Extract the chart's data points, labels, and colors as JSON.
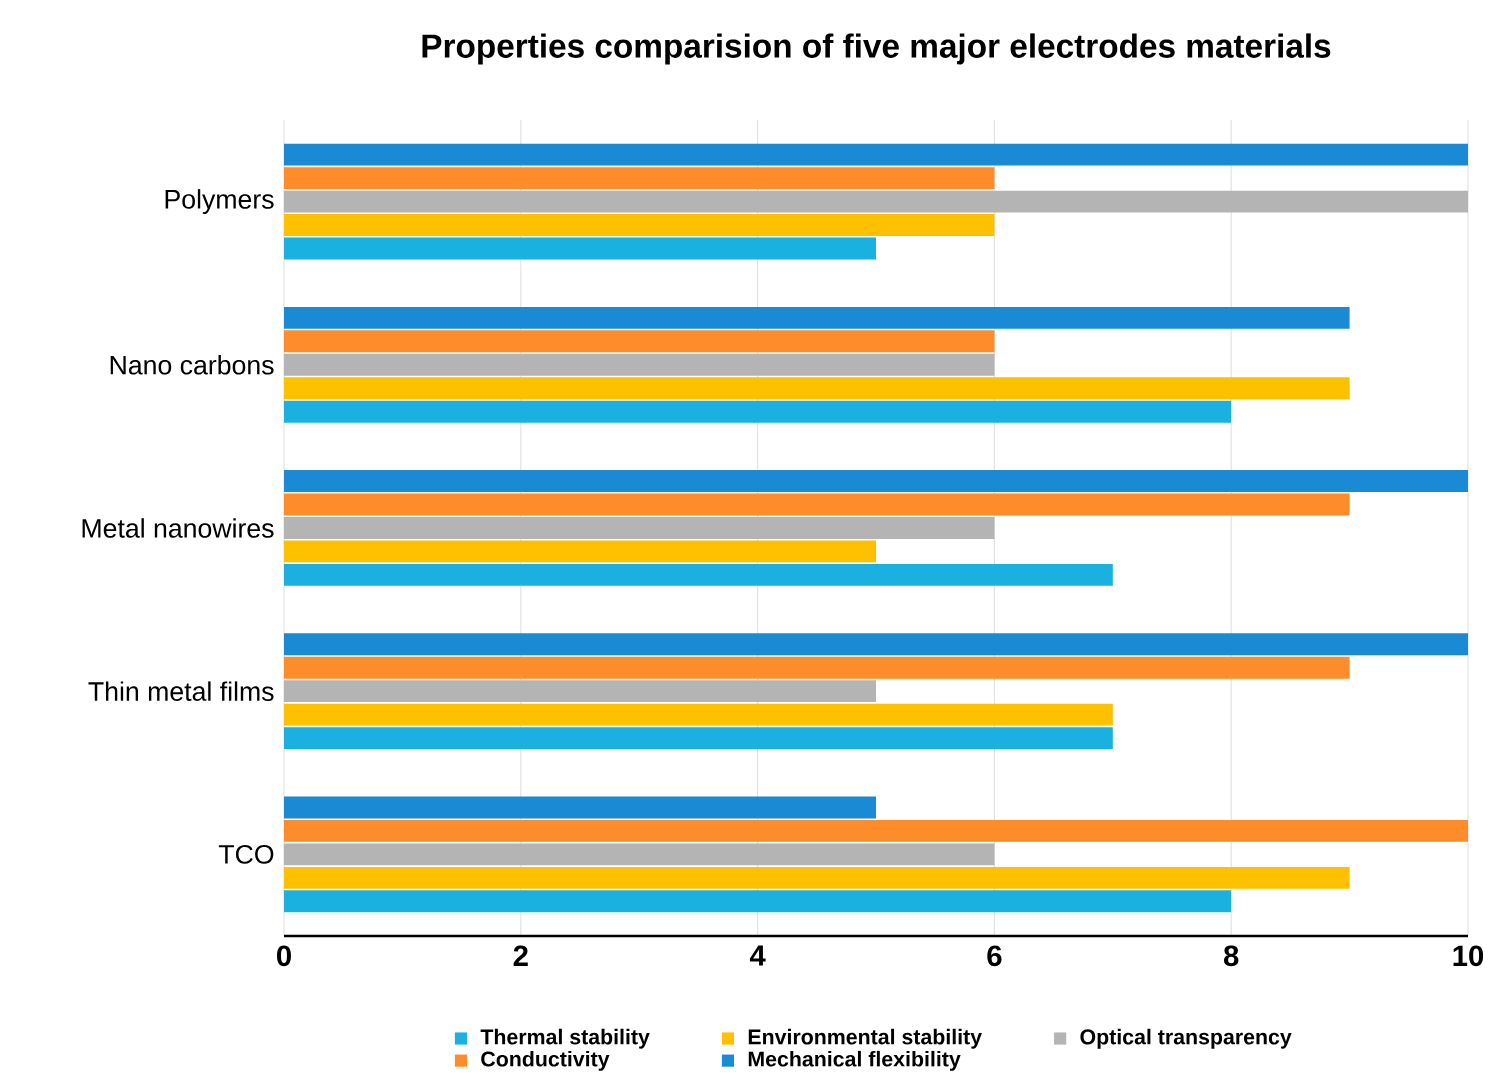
{
  "chart_data": {
    "type": "bar",
    "orientation": "horizontal",
    "title": "Properties comparision of five major electrodes materials",
    "categories": [
      "Polymers",
      "Nano carbons",
      "Metal nanowires",
      "Thin metal films",
      "TCO"
    ],
    "series": [
      {
        "name": "Thermal stability",
        "color": "#1ab0e0",
        "values": [
          5,
          8,
          7,
          7,
          8
        ]
      },
      {
        "name": "Environmental stability",
        "color": "#ffc000",
        "values": [
          6,
          9,
          5,
          7,
          9
        ]
      },
      {
        "name": "Optical transparency",
        "color": "#b4b4b4",
        "values": [
          10,
          6,
          6,
          5,
          6
        ]
      },
      {
        "name": "Conductivity",
        "color": "#ff8c2a",
        "values": [
          6,
          6,
          9,
          9,
          10
        ]
      },
      {
        "name": "Mechanical flexibility",
        "color": "#1a8ad4",
        "values": [
          10,
          9,
          10,
          10,
          5
        ]
      }
    ],
    "xlim": [
      0,
      10
    ],
    "xticks": [
      0,
      2,
      4,
      6,
      8,
      10
    ],
    "grid": "x",
    "legend": "bottom"
  }
}
